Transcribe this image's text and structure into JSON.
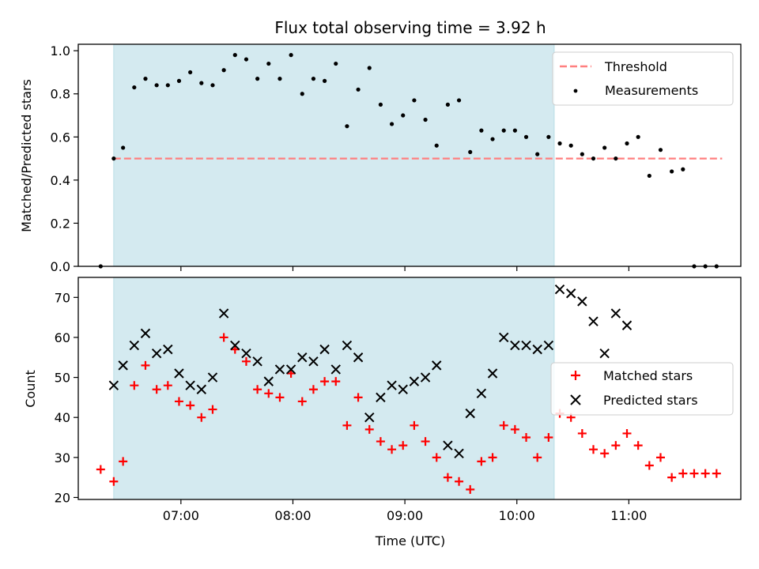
{
  "chart_data": {
    "title": "Flux total observing time = 3.92 h",
    "xlabel": "Time (UTC)",
    "x_ticks": [
      "07:00",
      "08:00",
      "09:00",
      "10:00",
      "11:00"
    ],
    "x_range": [
      "06:05",
      "12:00"
    ],
    "observing_window": [
      "06:24",
      "10:20"
    ],
    "observing_window_color": "#d4eaf0",
    "panels": [
      {
        "type": "scatter",
        "ylabel": "Matched/Predicted stars",
        "ylim": [
          0,
          1.03
        ],
        "y_ticks": [
          "0.0",
          "0.2",
          "0.4",
          "0.6",
          "0.8",
          "1.0"
        ],
        "legend": "top-right",
        "threshold": {
          "name": "Threshold",
          "value": 0.5,
          "range": [
            "06:24",
            "11:50"
          ],
          "color": "#ff7f7f"
        },
        "series": [
          {
            "name": "Measurements",
            "color": "#000000",
            "marker": "dot",
            "x": [
              "06:17",
              "06:24",
              "06:29",
              "06:35",
              "06:41",
              "06:47",
              "06:53",
              "06:59",
              "07:05",
              "07:11",
              "07:17",
              "07:23",
              "07:29",
              "07:35",
              "07:41",
              "07:47",
              "07:53",
              "07:59",
              "08:05",
              "08:11",
              "08:17",
              "08:23",
              "08:29",
              "08:35",
              "08:41",
              "08:47",
              "08:53",
              "08:59",
              "09:05",
              "09:11",
              "09:17",
              "09:23",
              "09:29",
              "09:35",
              "09:41",
              "09:47",
              "09:53",
              "09:59",
              "10:05",
              "10:11",
              "10:17",
              "10:23",
              "10:29",
              "10:35",
              "10:41",
              "10:47",
              "10:53",
              "10:59",
              "11:05",
              "11:11",
              "11:17",
              "11:23",
              "11:29",
              "11:35",
              "11:41",
              "11:47"
            ],
            "y": [
              0.0,
              0.5,
              0.55,
              0.83,
              0.87,
              0.84,
              0.84,
              0.86,
              0.9,
              0.85,
              0.84,
              0.91,
              0.98,
              0.96,
              0.87,
              0.94,
              0.87,
              0.98,
              0.8,
              0.87,
              0.86,
              0.94,
              0.65,
              0.82,
              0.92,
              0.75,
              0.66,
              0.7,
              0.77,
              0.68,
              0.56,
              0.75,
              0.77,
              0.53,
              0.63,
              0.59,
              0.63,
              0.63,
              0.6,
              0.52,
              0.6,
              0.57,
              0.56,
              0.52,
              0.5,
              0.55,
              0.5,
              0.57,
              0.6,
              0.42,
              0.54,
              0.44,
              0.45,
              0.0,
              0.0,
              0.0
            ]
          }
        ]
      },
      {
        "type": "scatter",
        "ylabel": "Count",
        "ylim": [
          19.5,
          75
        ],
        "y_ticks": [
          "20",
          "30",
          "40",
          "50",
          "60",
          "70"
        ],
        "legend": "center-right",
        "series": [
          {
            "name": "Matched stars",
            "color": "#ff0000",
            "marker": "plus",
            "x": [
              "06:17",
              "06:24",
              "06:29",
              "06:35",
              "06:41",
              "06:47",
              "06:53",
              "06:59",
              "07:05",
              "07:11",
              "07:17",
              "07:23",
              "07:29",
              "07:35",
              "07:41",
              "07:47",
              "07:53",
              "07:59",
              "08:05",
              "08:11",
              "08:17",
              "08:23",
              "08:29",
              "08:35",
              "08:41",
              "08:47",
              "08:53",
              "08:59",
              "09:05",
              "09:11",
              "09:17",
              "09:23",
              "09:29",
              "09:35",
              "09:41",
              "09:47",
              "09:53",
              "09:59",
              "10:05",
              "10:11",
              "10:17",
              "10:23",
              "10:29",
              "10:35",
              "10:41",
              "10:47",
              "10:53",
              "10:59",
              "11:05",
              "11:11",
              "11:17",
              "11:23",
              "11:29",
              "11:35",
              "11:41",
              "11:47"
            ],
            "y": [
              27,
              24,
              29,
              48,
              53,
              47,
              48,
              44,
              43,
              40,
              42,
              60,
              57,
              54,
              47,
              46,
              45,
              51,
              44,
              47,
              49,
              49,
              38,
              45,
              37,
              34,
              32,
              33,
              38,
              34,
              30,
              25,
              24,
              22,
              29,
              30,
              38,
              37,
              35,
              30,
              35,
              41,
              40,
              36,
              32,
              31,
              33,
              36,
              33,
              28,
              30,
              25,
              26,
              26,
              26,
              26
            ]
          },
          {
            "name": "Predicted stars",
            "color": "#000000",
            "marker": "x",
            "x": [
              "06:24",
              "06:29",
              "06:35",
              "06:41",
              "06:47",
              "06:53",
              "06:59",
              "07:05",
              "07:11",
              "07:17",
              "07:23",
              "07:29",
              "07:35",
              "07:41",
              "07:47",
              "07:53",
              "07:59",
              "08:05",
              "08:11",
              "08:17",
              "08:23",
              "08:29",
              "08:35",
              "08:41",
              "08:47",
              "08:53",
              "08:59",
              "09:05",
              "09:11",
              "09:17",
              "09:23",
              "09:29",
              "09:35",
              "09:41",
              "09:47",
              "09:53",
              "09:59",
              "10:05",
              "10:11",
              "10:17",
              "10:23",
              "10:29",
              "10:35",
              "10:41",
              "10:47",
              "10:53",
              "10:59"
            ],
            "y": [
              48,
              53,
              58,
              61,
              56,
              57,
              51,
              48,
              47,
              50,
              66,
              58,
              56,
              54,
              49,
              52,
              52,
              55,
              54,
              57,
              52,
              58,
              55,
              40,
              45,
              48,
              47,
              49,
              50,
              53,
              33,
              31,
              41,
              46,
              51,
              60,
              58,
              58,
              57,
              58,
              72,
              71,
              69,
              64,
              56,
              66,
              63
            ]
          }
        ]
      }
    ]
  }
}
